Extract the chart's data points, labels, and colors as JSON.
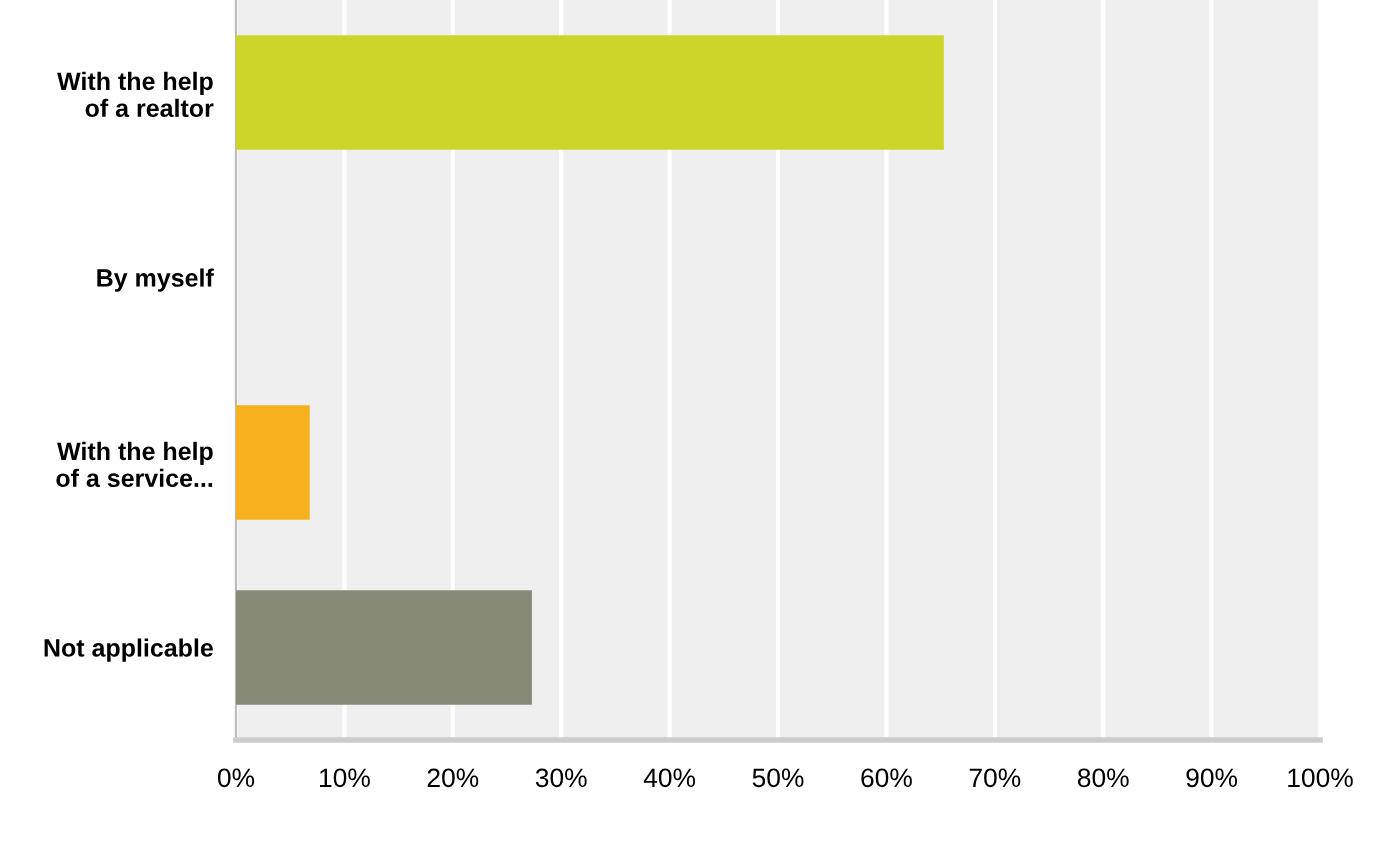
{
  "chart_data": {
    "type": "bar",
    "orientation": "horizontal",
    "categories": [
      "With the help\nof a realtor",
      "By myself",
      "With the help\nof a service...",
      "Not applicable"
    ],
    "values": [
      65.3,
      0,
      6.8,
      27.3
    ],
    "colors": [
      "#cdd52a",
      "#f7b01e",
      "#f7b01e",
      "#888a78"
    ],
    "xlim": [
      0,
      100
    ],
    "xticks": [
      {
        "value": 0,
        "label": "0%"
      },
      {
        "value": 10,
        "label": "10%"
      },
      {
        "value": 20,
        "label": "20%"
      },
      {
        "value": 30,
        "label": "30%"
      },
      {
        "value": 40,
        "label": "40%"
      },
      {
        "value": 50,
        "label": "50%"
      },
      {
        "value": 60,
        "label": "60%"
      },
      {
        "value": 70,
        "label": "70%"
      },
      {
        "value": 80,
        "label": "80%"
      },
      {
        "value": 90,
        "label": "90%"
      },
      {
        "value": 100,
        "label": "100%"
      }
    ],
    "grid": "x"
  }
}
